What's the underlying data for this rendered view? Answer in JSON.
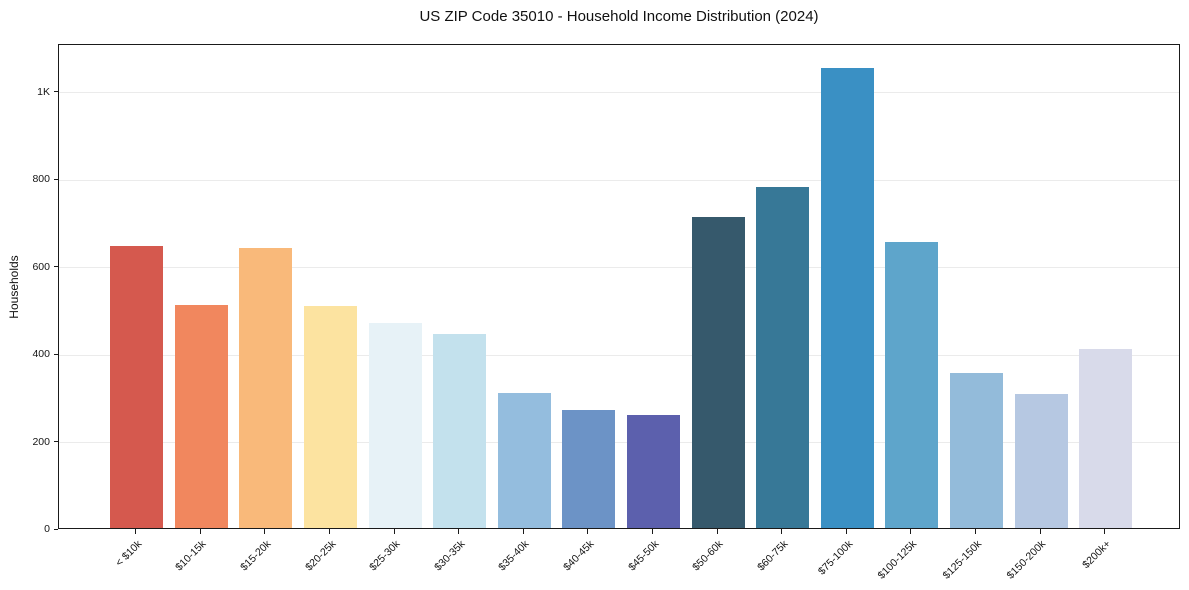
{
  "chart_data": {
    "type": "bar",
    "title": "US ZIP Code 35010 - Household Income Distribution (2024)",
    "xlabel": "",
    "ylabel": "Households",
    "ylim": [
      0,
      1109
    ],
    "grid": "horizontal-light-gray",
    "legend_position": "none",
    "background": "#ffffff",
    "categories": [
      "< $10k",
      "$10-15k",
      "$15-20k",
      "$20-25k",
      "$25-30k",
      "$30-35k",
      "$35-40k",
      "$40-45k",
      "$45-50k",
      "$50-60k",
      "$60-75k",
      "$75-100k",
      "$100-125k",
      "$125-150k",
      "$150-200k",
      "$200k+"
    ],
    "values": [
      648,
      512,
      643,
      510,
      471,
      445,
      310,
      272,
      260,
      713,
      784,
      1056,
      657,
      355,
      307,
      411
    ],
    "bar_colors": [
      "#d5594e",
      "#f1875e",
      "#f9b97a",
      "#fce3a0",
      "#e7f2f7",
      "#c3e1ed",
      "#94bdde",
      "#6c93c6",
      "#5c60ad",
      "#36596c",
      "#377897",
      "#3a90c4",
      "#5ea5cb",
      "#93bbda",
      "#b6c8e2",
      "#d8daea"
    ],
    "yticks": [
      {
        "value": 0,
        "label": "0"
      },
      {
        "value": 200,
        "label": "200"
      },
      {
        "value": 400,
        "label": "400"
      },
      {
        "value": 600,
        "label": "600"
      },
      {
        "value": 800,
        "label": "800"
      },
      {
        "value": 1000,
        "label": "1K"
      }
    ]
  }
}
